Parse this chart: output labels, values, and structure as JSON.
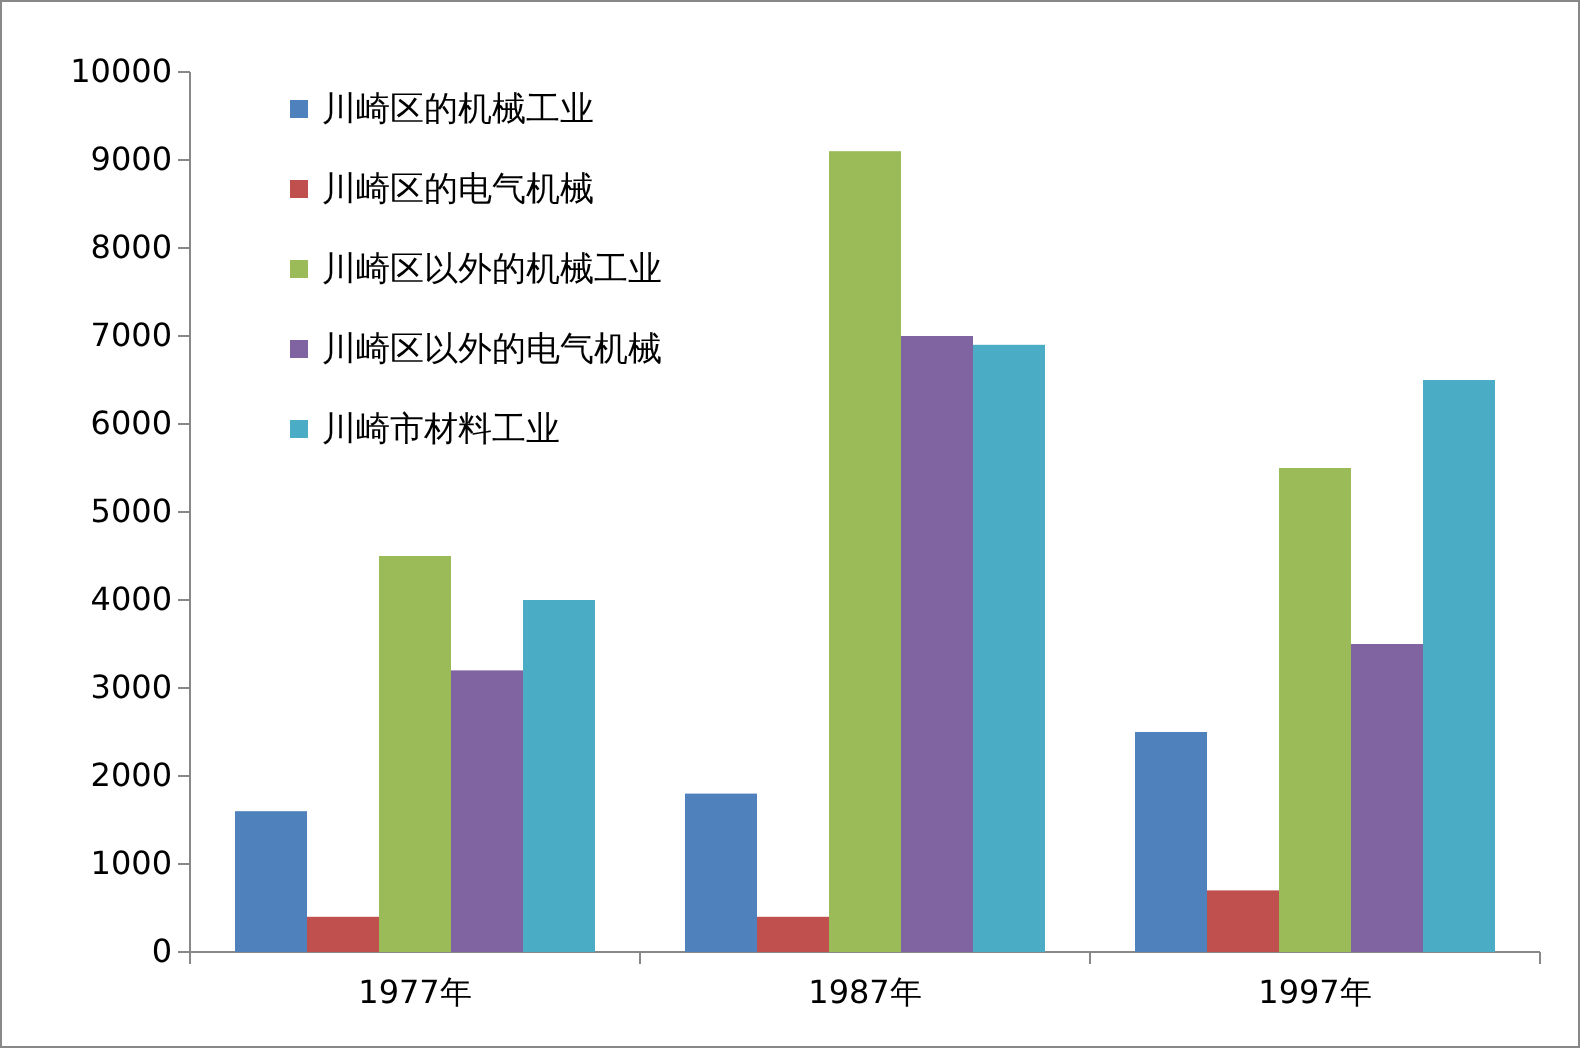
{
  "chart_data": {
    "type": "bar",
    "categories": [
      "1977年",
      "1987年",
      "1997年"
    ],
    "series": [
      {
        "name": "川崎区的机械工业",
        "color": "#4f81bd",
        "values": [
          1600,
          1800,
          2500
        ]
      },
      {
        "name": "川崎区的电气机械",
        "color": "#c0504d",
        "values": [
          400,
          400,
          700
        ]
      },
      {
        "name": "川崎区以外的机械工业",
        "color": "#9bbb59",
        "values": [
          4500,
          9100,
          5500
        ]
      },
      {
        "name": "川崎区以外的电气机械",
        "color": "#8064a2",
        "values": [
          3200,
          7000,
          3500
        ]
      },
      {
        "name": "川崎市材料工业",
        "color": "#4bacc6",
        "values": [
          4000,
          6900,
          6500
        ]
      }
    ],
    "ylim": [
      0,
      10000
    ],
    "yticks": [
      0,
      1000,
      2000,
      3000,
      4000,
      5000,
      6000,
      7000,
      8000,
      9000,
      10000
    ],
    "grid": false,
    "legend": "top left"
  }
}
